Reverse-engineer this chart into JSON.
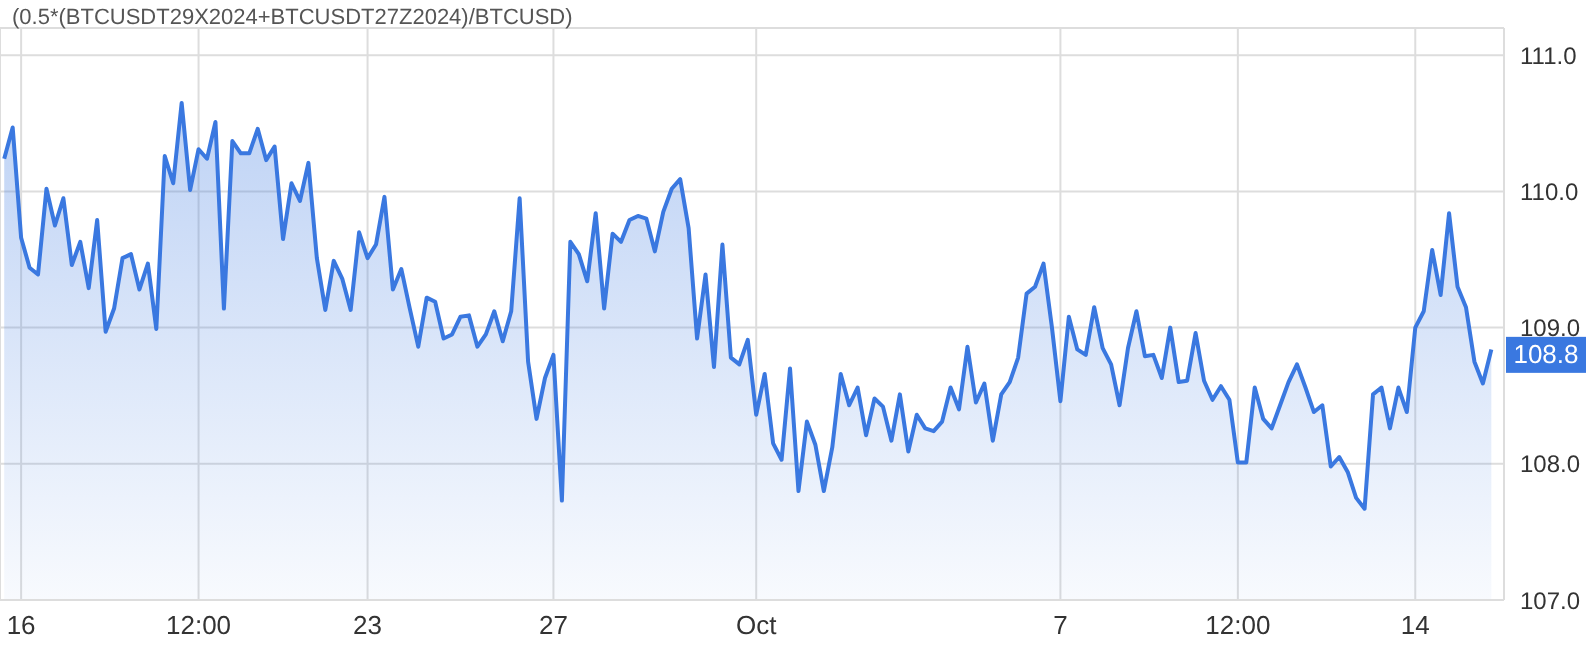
{
  "chart_data": {
    "type": "area",
    "title": "(0.5*(BTCUSDT29X2024+BTCUSDT27Z2024)/BTCUSD)",
    "categories": [
      null,
      null,
      "16",
      null,
      null,
      null,
      null,
      null,
      null,
      null,
      null,
      null,
      null,
      null,
      null,
      null,
      null,
      null,
      null,
      null,
      null,
      null,
      null,
      "12:00",
      null,
      null,
      null,
      null,
      null,
      null,
      null,
      null,
      null,
      null,
      null,
      null,
      null,
      null,
      null,
      null,
      null,
      null,
      null,
      "23",
      null,
      null,
      null,
      null,
      null,
      null,
      null,
      null,
      null,
      null,
      null,
      null,
      null,
      null,
      null,
      null,
      null,
      null,
      null,
      null,
      null,
      "27",
      null,
      null,
      null,
      null,
      null,
      null,
      null,
      null,
      null,
      null,
      null,
      null,
      null,
      null,
      null,
      null,
      null,
      null,
      null,
      null,
      null,
      null,
      null,
      "Oct",
      null,
      null,
      null,
      null,
      null,
      null,
      null,
      null,
      null,
      null,
      null,
      null,
      null,
      null,
      null,
      null,
      null,
      null,
      null,
      null,
      null,
      null,
      null,
      null,
      null,
      null,
      null,
      null,
      null,
      null,
      null,
      null,
      null,
      null,
      null,
      "7",
      null,
      null,
      null,
      null,
      null,
      null,
      null,
      null,
      null,
      null,
      null,
      null,
      null,
      null,
      null,
      null,
      null,
      null,
      null,
      null,
      "12:00",
      null,
      null,
      null,
      null,
      null,
      null,
      null,
      null,
      null,
      null,
      null,
      null,
      null,
      null,
      null,
      null,
      null,
      null,
      null,
      null,
      "14",
      null,
      null,
      null,
      null,
      null,
      null,
      null,
      null,
      null
    ],
    "series": [
      {
        "color": "#3a78e0",
        "values": [
          110.24,
          110.47,
          109.66,
          109.44,
          109.39,
          110.02,
          109.75,
          109.95,
          109.46,
          109.63,
          109.29,
          109.79,
          108.97,
          109.14,
          109.51,
          109.54,
          109.28,
          109.47,
          108.99,
          110.26,
          110.06,
          110.65,
          110.01,
          110.31,
          110.24,
          110.51,
          109.14,
          110.37,
          110.28,
          110.28,
          110.46,
          110.23,
          110.33,
          109.65,
          110.06,
          109.93,
          110.21,
          109.51,
          109.13,
          109.49,
          109.36,
          109.13,
          109.7,
          109.51,
          109.61,
          109.96,
          109.28,
          109.43,
          109.14,
          108.86,
          109.22,
          109.19,
          108.92,
          108.95,
          109.08,
          109.09,
          108.86,
          108.95,
          109.12,
          108.9,
          109.12,
          109.95,
          108.75,
          108.33,
          108.63,
          108.8,
          107.73,
          109.63,
          109.54,
          109.34,
          109.84,
          109.14,
          109.69,
          109.63,
          109.79,
          109.82,
          109.8,
          109.56,
          109.85,
          110.02,
          110.09,
          109.73,
          108.92,
          109.39,
          108.71,
          109.61,
          108.78,
          108.73,
          108.91,
          108.36,
          108.66,
          108.15,
          108.03,
          108.7,
          107.8,
          108.31,
          108.14,
          107.8,
          108.12,
          108.66,
          108.43,
          108.56,
          108.21,
          108.48,
          108.42,
          108.17,
          108.51,
          108.09,
          108.36,
          108.26,
          108.24,
          108.31,
          108.56,
          108.4,
          108.86,
          108.45,
          108.59,
          108.17,
          108.51,
          108.6,
          108.78,
          109.25,
          109.3,
          109.47,
          109.0,
          108.46,
          109.08,
          108.84,
          108.8,
          109.15,
          108.85,
          108.73,
          108.43,
          108.85,
          109.12,
          108.79,
          108.8,
          108.63,
          109.0,
          108.6,
          108.61,
          108.96,
          108.61,
          108.47,
          108.57,
          108.47,
          108.01,
          108.01,
          108.56,
          108.33,
          108.26,
          108.43,
          108.6,
          108.73,
          108.56,
          108.38,
          108.43,
          107.98,
          108.05,
          107.94,
          107.75,
          107.67,
          108.51,
          108.56,
          108.26,
          108.56,
          108.38,
          109.0,
          109.12,
          109.57,
          109.24,
          109.84,
          109.3,
          109.15,
          108.75,
          108.59,
          108.84
        ]
      }
    ],
    "ylim": [
      107,
      111.2
    ],
    "yticks": [
      {
        "value": 107,
        "label": "107.0"
      },
      {
        "value": 108,
        "label": "108.0"
      },
      {
        "value": 109,
        "label": "109.0"
      },
      {
        "value": 110,
        "label": "110.0"
      },
      {
        "value": 111,
        "label": "111.0"
      }
    ],
    "grid": true,
    "annotations": [
      {
        "text": "108.8",
        "y": 108.8
      }
    ]
  }
}
